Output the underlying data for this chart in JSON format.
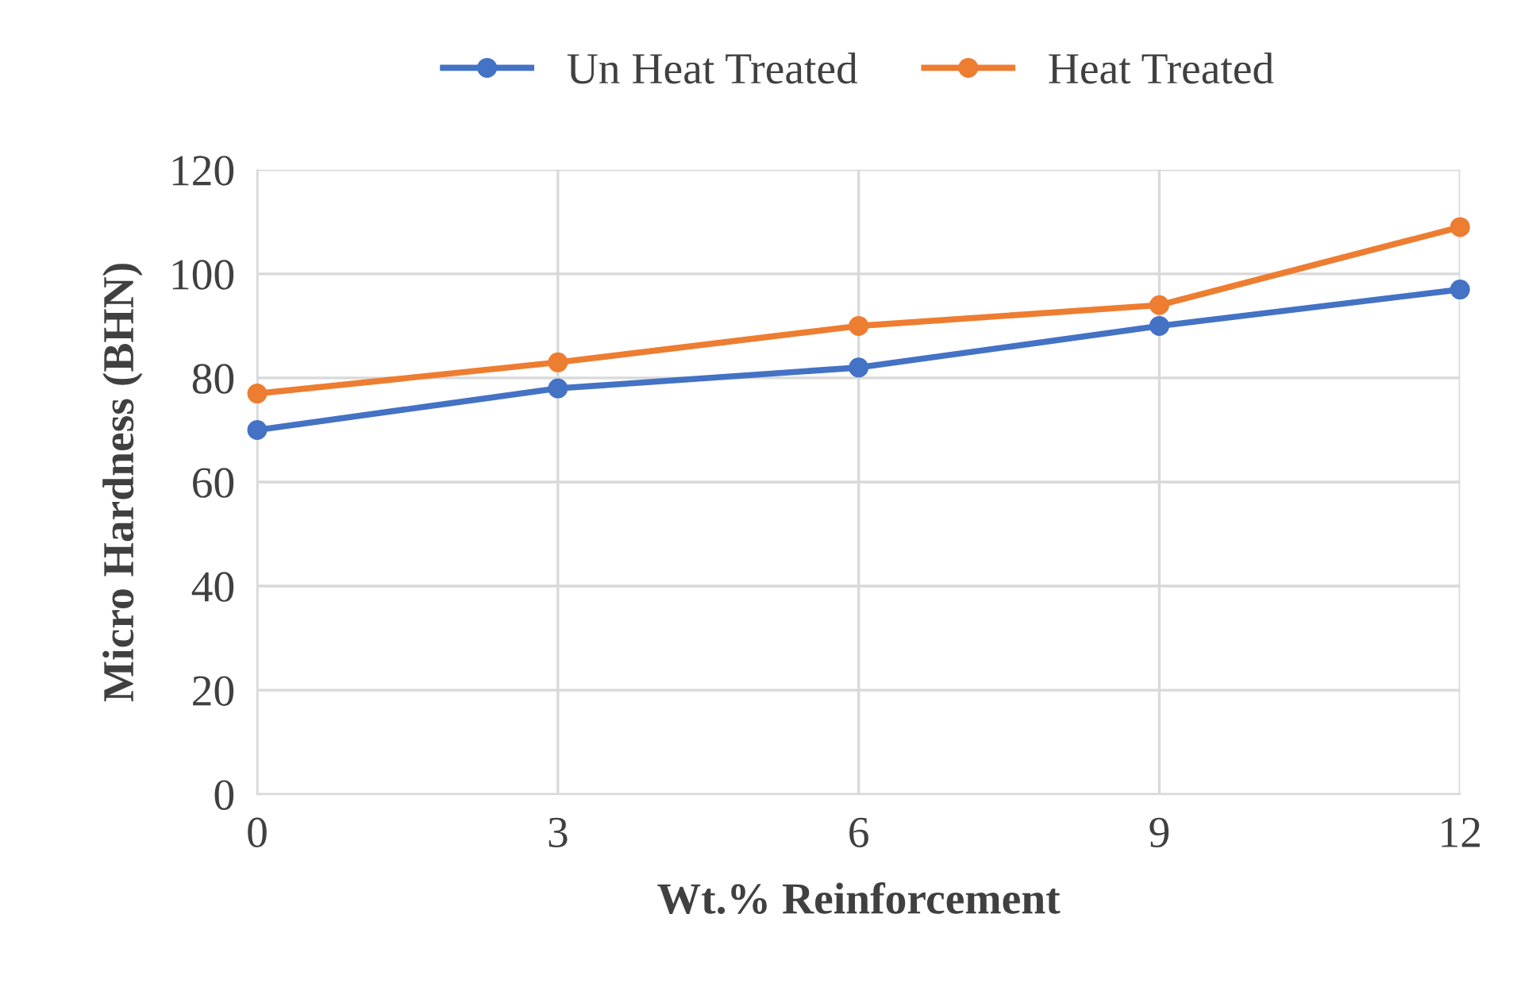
{
  "chart_data": {
    "type": "line",
    "xlabel": "Wt.% Reinforcement",
    "ylabel": "Micro Hardness (BHN)",
    "x": [
      0,
      3,
      6,
      9,
      12
    ],
    "series": [
      {
        "name": "Un Heat Treated",
        "color": "#4472c4",
        "values": [
          70,
          78,
          82,
          90,
          97
        ]
      },
      {
        "name": "Heat Treated",
        "color": "#ed7d31",
        "values": [
          77,
          83,
          90,
          94,
          109
        ]
      }
    ],
    "xlim": [
      0,
      12
    ],
    "xticks": [
      0,
      3,
      6,
      9,
      12
    ],
    "ylim": [
      0,
      120
    ],
    "yticks": [
      0,
      20,
      40,
      60,
      80,
      100,
      120
    ],
    "grid": true,
    "legend": "top",
    "marker": "circle",
    "line_style": "solid"
  }
}
